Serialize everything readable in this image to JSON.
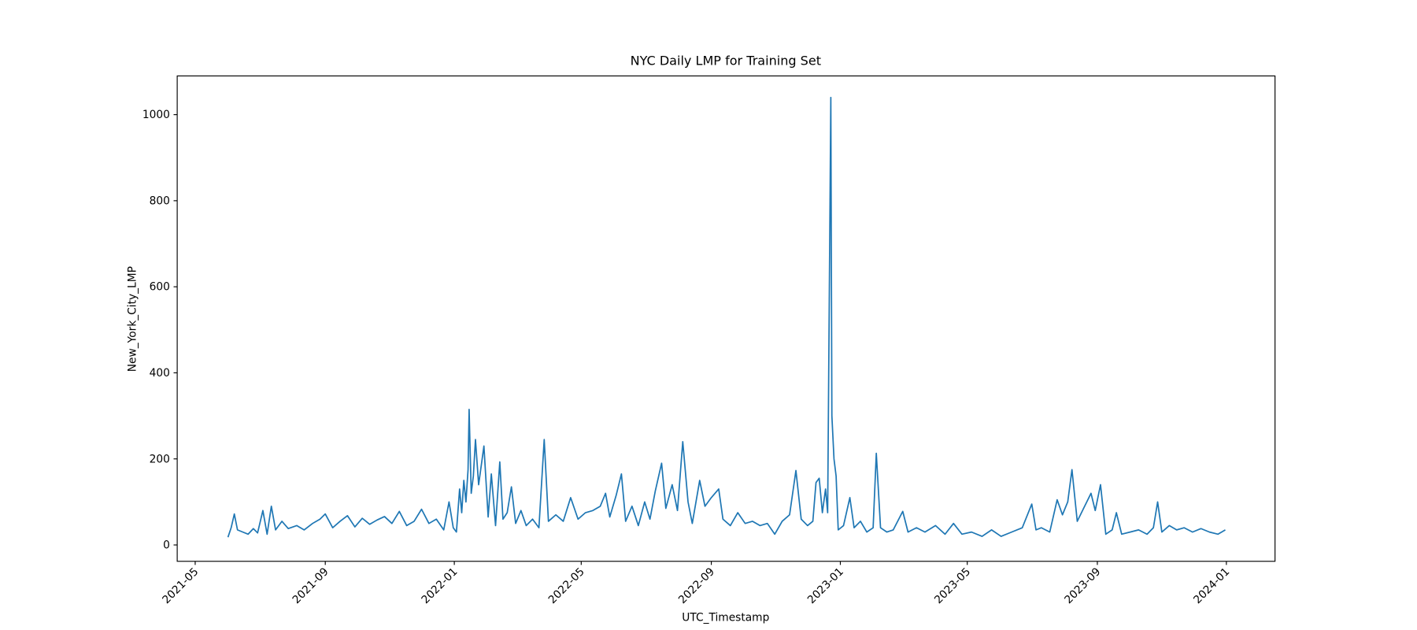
{
  "chart_data": {
    "type": "line",
    "title": "NYC Daily LMP for Training Set",
    "x_label": "UTC_Timestamp",
    "y_label": "New_York_City_LMP",
    "xlim": [
      "2021-04-14",
      "2024-02-16"
    ],
    "ylim": [
      -38,
      1090
    ],
    "xticks": [
      {
        "value": "2021-05-01",
        "label": "2021-05"
      },
      {
        "value": "2021-09-01",
        "label": "2021-09"
      },
      {
        "value": "2022-01-01",
        "label": "2022-01"
      },
      {
        "value": "2022-05-01",
        "label": "2022-05"
      },
      {
        "value": "2022-09-01",
        "label": "2022-09"
      },
      {
        "value": "2023-01-01",
        "label": "2023-01"
      },
      {
        "value": "2023-05-01",
        "label": "2023-05"
      },
      {
        "value": "2023-09-01",
        "label": "2023-09"
      },
      {
        "value": "2024-01-01",
        "label": "2024-01"
      }
    ],
    "yticks": [
      0,
      200,
      400,
      600,
      800,
      1000
    ],
    "grid": false,
    "series": [
      {
        "name": "New_York_City_LMP",
        "color": "#1f77b4",
        "x": [
          "2021-06-01",
          "2021-06-04",
          "2021-06-07",
          "2021-06-10",
          "2021-06-15",
          "2021-06-20",
          "2021-06-25",
          "2021-06-29",
          "2021-07-04",
          "2021-07-08",
          "2021-07-12",
          "2021-07-16",
          "2021-07-22",
          "2021-07-28",
          "2021-08-05",
          "2021-08-12",
          "2021-08-20",
          "2021-08-27",
          "2021-09-01",
          "2021-09-08",
          "2021-09-15",
          "2021-09-22",
          "2021-09-29",
          "2021-10-06",
          "2021-10-13",
          "2021-10-20",
          "2021-10-27",
          "2021-11-03",
          "2021-11-10",
          "2021-11-17",
          "2021-11-24",
          "2021-12-01",
          "2021-12-08",
          "2021-12-15",
          "2021-12-22",
          "2021-12-27",
          "2021-12-31",
          "2022-01-03",
          "2022-01-06",
          "2022-01-08",
          "2022-01-10",
          "2022-01-12",
          "2022-01-14",
          "2022-01-15",
          "2022-01-17",
          "2022-01-19",
          "2022-01-21",
          "2022-01-24",
          "2022-01-29",
          "2022-02-02",
          "2022-02-05",
          "2022-02-09",
          "2022-02-13",
          "2022-02-16",
          "2022-02-20",
          "2022-02-24",
          "2022-02-28",
          "2022-03-05",
          "2022-03-10",
          "2022-03-16",
          "2022-03-22",
          "2022-03-27",
          "2022-03-31",
          "2022-04-07",
          "2022-04-14",
          "2022-04-21",
          "2022-04-28",
          "2022-05-05",
          "2022-05-12",
          "2022-05-19",
          "2022-05-24",
          "2022-05-28",
          "2022-06-03",
          "2022-06-08",
          "2022-06-12",
          "2022-06-18",
          "2022-06-24",
          "2022-06-30",
          "2022-07-05",
          "2022-07-10",
          "2022-07-16",
          "2022-07-20",
          "2022-07-26",
          "2022-07-31",
          "2022-08-05",
          "2022-08-10",
          "2022-08-14",
          "2022-08-21",
          "2022-08-26",
          "2022-09-01",
          "2022-09-08",
          "2022-09-12",
          "2022-09-19",
          "2022-09-26",
          "2022-10-03",
          "2022-10-10",
          "2022-10-17",
          "2022-10-24",
          "2022-10-31",
          "2022-11-07",
          "2022-11-14",
          "2022-11-20",
          "2022-11-25",
          "2022-12-01",
          "2022-12-06",
          "2022-12-09",
          "2022-12-12",
          "2022-12-15",
          "2022-12-18",
          "2022-12-20",
          "2022-12-23",
          "2022-12-24",
          "2022-12-26",
          "2022-12-28",
          "2022-12-30",
          "2023-01-04",
          "2023-01-10",
          "2023-01-14",
          "2023-01-20",
          "2023-01-26",
          "2023-02-01",
          "2023-02-04",
          "2023-02-08",
          "2023-02-14",
          "2023-02-20",
          "2023-03-01",
          "2023-03-06",
          "2023-03-14",
          "2023-03-22",
          "2023-04-01",
          "2023-04-10",
          "2023-04-18",
          "2023-04-26",
          "2023-05-05",
          "2023-05-15",
          "2023-05-24",
          "2023-06-02",
          "2023-06-12",
          "2023-06-22",
          "2023-07-01",
          "2023-07-05",
          "2023-07-10",
          "2023-07-18",
          "2023-07-25",
          "2023-07-30",
          "2023-08-04",
          "2023-08-08",
          "2023-08-13",
          "2023-08-19",
          "2023-08-26",
          "2023-08-30",
          "2023-09-04",
          "2023-09-09",
          "2023-09-15",
          "2023-09-19",
          "2023-09-24",
          "2023-10-02",
          "2023-10-10",
          "2023-10-18",
          "2023-10-24",
          "2023-10-28",
          "2023-11-01",
          "2023-11-08",
          "2023-11-15",
          "2023-11-22",
          "2023-11-30",
          "2023-12-08",
          "2023-12-16",
          "2023-12-24",
          "2023-12-31"
        ],
        "values": [
          18,
          40,
          72,
          35,
          30,
          25,
          38,
          28,
          80,
          25,
          90,
          35,
          55,
          38,
          45,
          35,
          50,
          60,
          72,
          40,
          55,
          68,
          42,
          62,
          48,
          58,
          66,
          50,
          78,
          45,
          55,
          83,
          50,
          60,
          35,
          100,
          40,
          30,
          130,
          75,
          150,
          100,
          175,
          315,
          120,
          160,
          245,
          140,
          230,
          65,
          165,
          45,
          193,
          60,
          75,
          135,
          50,
          80,
          45,
          60,
          40,
          245,
          55,
          70,
          55,
          110,
          60,
          75,
          80,
          90,
          120,
          65,
          115,
          165,
          55,
          90,
          45,
          100,
          60,
          125,
          190,
          85,
          140,
          80,
          240,
          100,
          50,
          150,
          90,
          110,
          130,
          60,
          45,
          75,
          50,
          55,
          45,
          50,
          25,
          55,
          70,
          173,
          60,
          45,
          55,
          145,
          155,
          75,
          130,
          75,
          1040,
          300,
          200,
          160,
          35,
          45,
          110,
          40,
          55,
          30,
          40,
          213,
          40,
          30,
          35,
          78,
          30,
          40,
          30,
          45,
          25,
          50,
          25,
          30,
          20,
          35,
          20,
          30,
          40,
          95,
          35,
          40,
          30,
          105,
          70,
          100,
          175,
          55,
          85,
          120,
          80,
          140,
          25,
          35,
          75,
          25,
          30,
          35,
          25,
          40,
          100,
          30,
          45,
          35,
          40,
          30,
          38,
          30,
          25,
          35
        ]
      }
    ]
  }
}
